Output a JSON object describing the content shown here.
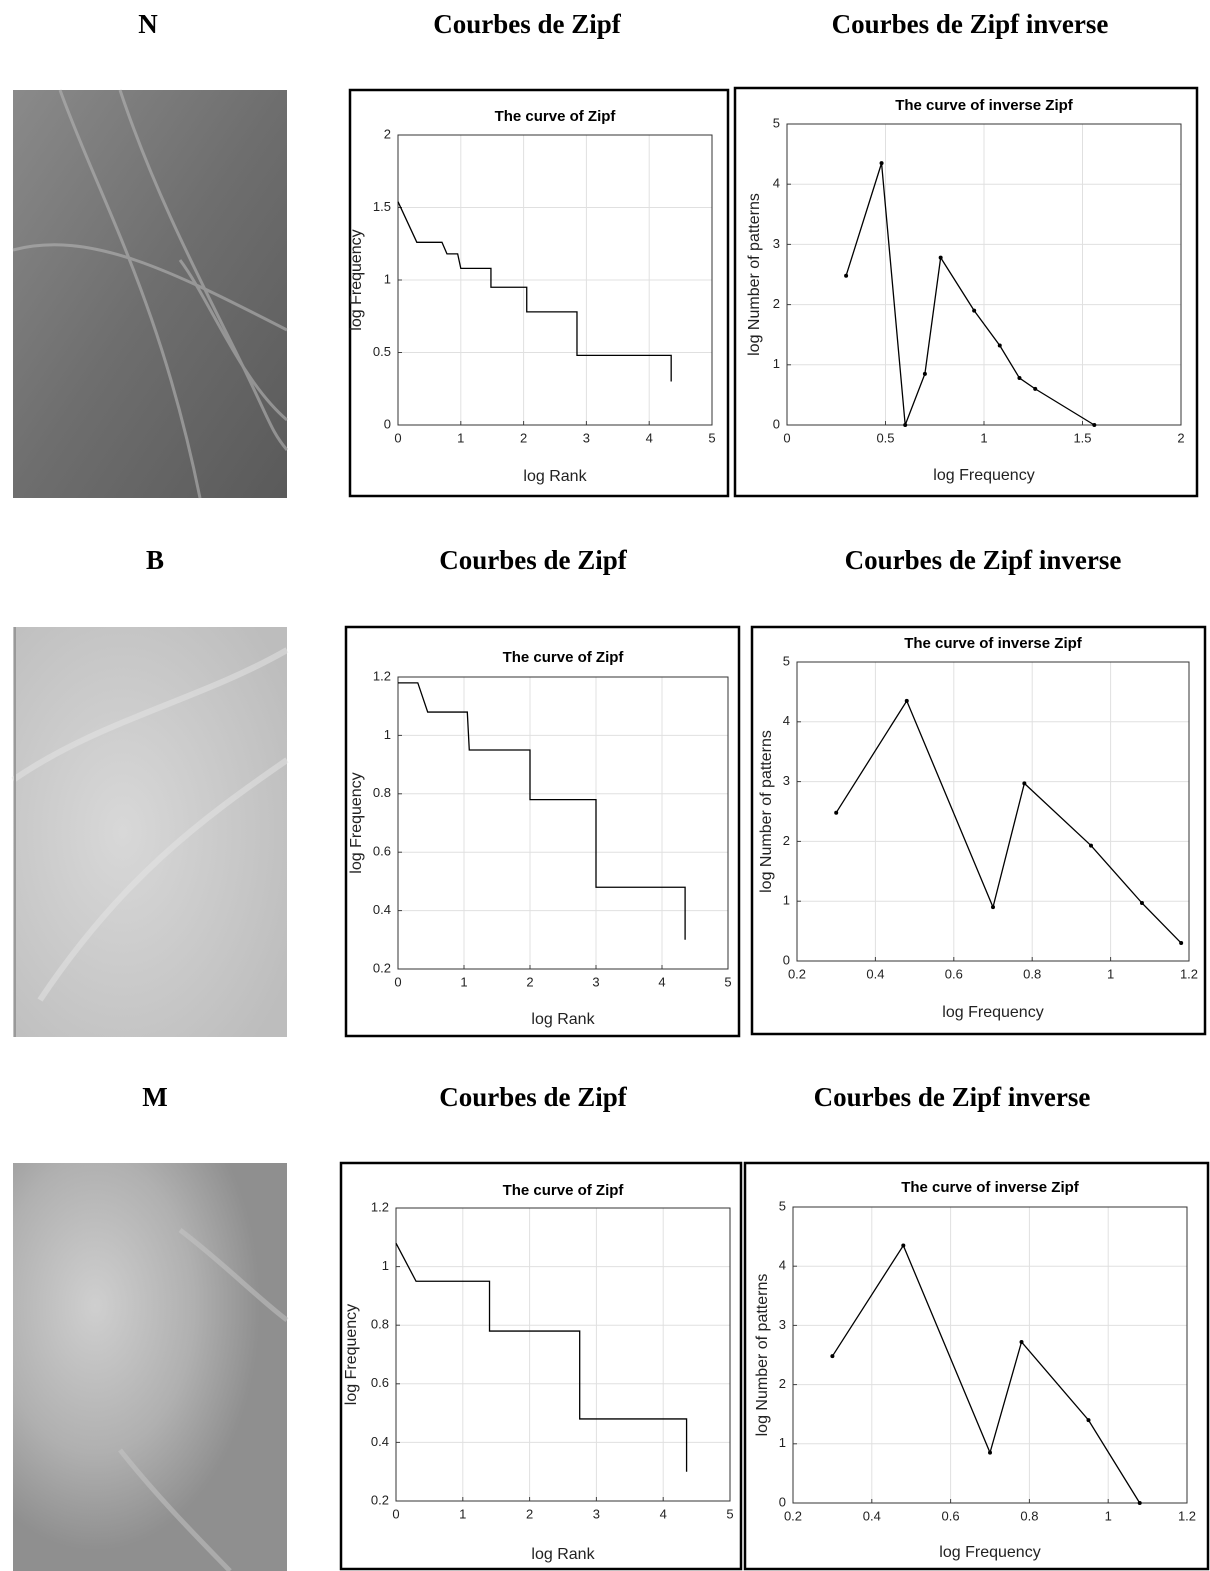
{
  "rows": [
    {
      "label": "N",
      "zipf_heading": "Courbes de Zipf",
      "inverse_heading": "Courbes de Zipf inverse"
    },
    {
      "label": "B",
      "zipf_heading": "Courbes de Zipf",
      "inverse_heading": "Courbes de Zipf inverse"
    },
    {
      "label": "M",
      "zipf_heading": "Courbes de Zipf",
      "inverse_heading": "Courbes de Zipf inverse"
    }
  ],
  "chart_data": [
    {
      "type": "line",
      "title": "The curve of Zipf",
      "xlabel": "log Rank",
      "ylabel": "log Frequency",
      "color": "#000000",
      "grid": true,
      "markers": false,
      "x": [
        0,
        0.3,
        0.7,
        0.78,
        0.95,
        1.0,
        1.48,
        1.48,
        2.05,
        2.05,
        2.85,
        2.85,
        4.35,
        4.35
      ],
      "values": [
        1.54,
        1.26,
        1.26,
        1.18,
        1.18,
        1.08,
        1.08,
        0.95,
        0.95,
        0.78,
        0.78,
        0.48,
        0.48,
        0.3
      ],
      "xlim": [
        0,
        5
      ],
      "xticks": [
        0,
        1,
        2,
        3,
        4,
        5
      ],
      "ylim": [
        0,
        2
      ],
      "yticks": [
        0,
        0.5,
        1,
        1.5,
        2
      ]
    },
    {
      "type": "line",
      "title": "The curve of inverse Zipf",
      "xlabel": "log Frequency",
      "ylabel": "log Number of patterns",
      "color": "#000000",
      "grid": true,
      "markers": true,
      "x": [
        0.3,
        0.48,
        0.6,
        0.7,
        0.78,
        0.95,
        1.08,
        1.18,
        1.26,
        1.56
      ],
      "values": [
        2.48,
        4.35,
        0,
        0.85,
        2.78,
        1.9,
        1.32,
        0.78,
        0.6,
        0
      ],
      "xlim": [
        0,
        2
      ],
      "xticks": [
        0,
        0.5,
        1,
        1.5,
        2
      ],
      "ylim": [
        0,
        5
      ],
      "yticks": [
        0,
        1,
        2,
        3,
        4,
        5
      ]
    },
    {
      "type": "line",
      "title": "The curve of Zipf",
      "xlabel": "log Rank",
      "ylabel": "log Frequency",
      "color": "#000000",
      "grid": true,
      "markers": false,
      "x": [
        0,
        0.3,
        0.45,
        1.05,
        1.08,
        2.0,
        2.0,
        3.0,
        3.0,
        4.35,
        4.35
      ],
      "values": [
        1.18,
        1.18,
        1.08,
        1.08,
        0.95,
        0.95,
        0.78,
        0.78,
        0.48,
        0.48,
        0.3
      ],
      "xlim": [
        0,
        5
      ],
      "xticks": [
        0,
        1,
        2,
        3,
        4,
        5
      ],
      "ylim": [
        0.2,
        1.2
      ],
      "yticks": [
        0.2,
        0.4,
        0.6,
        0.8,
        1,
        1.2
      ]
    },
    {
      "type": "line",
      "title": "The curve of inverse Zipf",
      "xlabel": "log Frequency",
      "ylabel": "log Number of patterns",
      "color": "#000000",
      "grid": true,
      "markers": true,
      "x": [
        0.3,
        0.48,
        0.7,
        0.78,
        0.95,
        1.08,
        1.18
      ],
      "values": [
        2.48,
        4.35,
        0.9,
        2.97,
        1.93,
        0.97,
        0.3
      ],
      "xlim": [
        0.2,
        1.2
      ],
      "xticks": [
        0.2,
        0.4,
        0.6,
        0.8,
        1,
        1.2
      ],
      "ylim": [
        0,
        5
      ],
      "yticks": [
        0,
        1,
        2,
        3,
        4,
        5
      ]
    },
    {
      "type": "line",
      "title": "The curve of Zipf",
      "xlabel": "log Rank",
      "ylabel": "log Frequency",
      "color": "#000000",
      "grid": true,
      "markers": false,
      "x": [
        0,
        0.3,
        1.4,
        1.4,
        2.75,
        2.75,
        4.35,
        4.35
      ],
      "values": [
        1.08,
        0.95,
        0.95,
        0.78,
        0.78,
        0.48,
        0.48,
        0.3
      ],
      "xlim": [
        0,
        5
      ],
      "xticks": [
        0,
        1,
        2,
        3,
        4,
        5
      ],
      "ylim": [
        0.2,
        1.2
      ],
      "yticks": [
        0.2,
        0.4,
        0.6,
        0.8,
        1,
        1.2
      ]
    },
    {
      "type": "line",
      "title": "The curve of inverse Zipf",
      "xlabel": "log Frequency",
      "ylabel": "log Number of patterns",
      "color": "#000000",
      "grid": true,
      "markers": true,
      "x": [
        0.3,
        0.48,
        0.7,
        0.78,
        0.95,
        1.08
      ],
      "values": [
        2.48,
        4.35,
        0.85,
        2.72,
        1.4,
        0
      ],
      "xlim": [
        0.2,
        1.2
      ],
      "xticks": [
        0.2,
        0.4,
        0.6,
        0.8,
        1,
        1.2
      ],
      "ylim": [
        0,
        5
      ],
      "yticks": [
        0,
        1,
        2,
        3,
        4,
        5
      ]
    }
  ]
}
